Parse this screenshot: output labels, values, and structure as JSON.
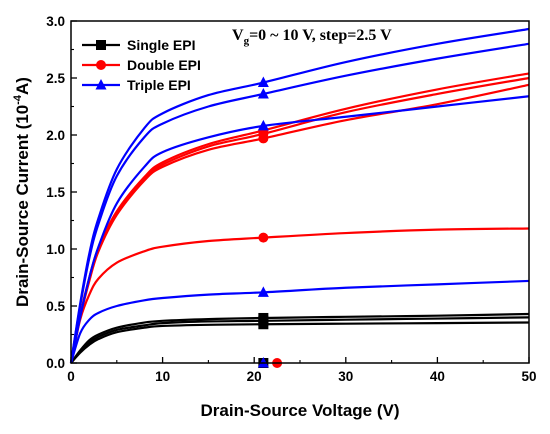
{
  "chart_data": {
    "type": "line",
    "xlabel": "Drain-Source Voltage (V)",
    "ylabel_main": "Drain-Source Current (10",
    "ylabel_exp": "-4",
    "ylabel_tail": "A)",
    "annotation_main": "V",
    "annotation_sub": "g",
    "annotation_tail": "=0 ~ 10 V, step=2.5 V",
    "xlim": [
      0,
      50
    ],
    "ylim": [
      0,
      3.0
    ],
    "xticks": [
      0,
      10,
      20,
      30,
      40,
      50
    ],
    "yticks": [
      0.0,
      0.5,
      1.0,
      1.5,
      2.0,
      2.5,
      3.0
    ],
    "legend_position": "top-left",
    "series": [
      {
        "name": "Single EPI",
        "color": "#000000",
        "marker": "square",
        "curves": [
          {
            "x": [
              0,
              1,
              2,
              3,
              5,
              8,
              10,
              15,
              21,
              30,
              40,
              50
            ],
            "y": [
              0,
              0.09,
              0.16,
              0.21,
              0.27,
              0.31,
              0.325,
              0.335,
              0.34,
              0.345,
              0.35,
              0.355
            ]
          },
          {
            "x": [
              0,
              1,
              2,
              3,
              5,
              8,
              10,
              15,
              21,
              30,
              40,
              50
            ],
            "y": [
              0,
              0.1,
              0.18,
              0.23,
              0.29,
              0.33,
              0.35,
              0.365,
              0.37,
              0.38,
              0.39,
              0.4
            ]
          },
          {
            "x": [
              0,
              1,
              2,
              3,
              5,
              8,
              10,
              15,
              21,
              30,
              40,
              50
            ],
            "y": [
              0,
              0.11,
              0.2,
              0.25,
              0.31,
              0.355,
              0.37,
              0.385,
              0.395,
              0.405,
              0.415,
              0.43
            ]
          }
        ],
        "points": [
          {
            "x": 21,
            "y": 0.0
          },
          {
            "x": 21,
            "y": 0.34
          },
          {
            "x": 21,
            "y": 0.37
          },
          {
            "x": 21,
            "y": 0.395
          }
        ]
      },
      {
        "name": "Double EPI",
        "color": "#ff0000",
        "marker": "circle",
        "curves": [
          {
            "x": [
              0,
              1,
              2,
              3,
              5,
              8,
              10,
              15,
              21,
              30,
              40,
              50
            ],
            "y": [
              0,
              0.38,
              0.6,
              0.74,
              0.88,
              0.98,
              1.02,
              1.07,
              1.1,
              1.14,
              1.17,
              1.18
            ]
          },
          {
            "x": [
              0,
              1,
              2,
              3,
              5,
              8,
              10,
              15,
              21,
              30,
              40,
              50
            ],
            "y": [
              0,
              0.4,
              0.72,
              0.98,
              1.3,
              1.6,
              1.72,
              1.87,
              1.97,
              2.13,
              2.27,
              2.44
            ]
          },
          {
            "x": [
              0,
              1,
              2,
              3,
              5,
              8,
              10,
              15,
              21,
              30,
              40,
              50
            ],
            "y": [
              0,
              0.41,
              0.73,
              0.99,
              1.31,
              1.61,
              1.74,
              1.9,
              2.01,
              2.2,
              2.36,
              2.5
            ]
          },
          {
            "x": [
              0,
              1,
              2,
              3,
              5,
              8,
              10,
              15,
              21,
              30,
              40,
              50
            ],
            "y": [
              0,
              0.42,
              0.75,
              1.01,
              1.33,
              1.63,
              1.76,
              1.92,
              2.04,
              2.23,
              2.4,
              2.54
            ]
          }
        ],
        "points": [
          {
            "x": 22.5,
            "y": 0.0
          },
          {
            "x": 21,
            "y": 1.1
          },
          {
            "x": 21,
            "y": 1.97
          },
          {
            "x": 21,
            "y": 2.01
          },
          {
            "x": 21,
            "y": 2.04
          }
        ]
      },
      {
        "name": "Triple EPI",
        "color": "#0000ff",
        "marker": "triangle",
        "curves": [
          {
            "x": [
              0,
              1,
              2,
              3,
              5,
              8,
              10,
              15,
              21,
              30,
              40,
              50
            ],
            "y": [
              0,
              0.26,
              0.38,
              0.44,
              0.5,
              0.55,
              0.57,
              0.6,
              0.62,
              0.66,
              0.69,
              0.72
            ]
          },
          {
            "x": [
              0,
              1,
              2,
              3,
              5,
              8,
              10,
              15,
              21,
              30,
              40,
              50
            ],
            "y": [
              0,
              0.4,
              0.75,
              1.02,
              1.4,
              1.72,
              1.85,
              1.98,
              2.08,
              2.16,
              2.25,
              2.34
            ]
          },
          {
            "x": [
              0,
              1,
              2,
              3,
              5,
              8,
              10,
              15,
              21,
              30,
              40,
              50
            ],
            "y": [
              0,
              0.5,
              0.92,
              1.22,
              1.64,
              1.98,
              2.1,
              2.25,
              2.36,
              2.52,
              2.67,
              2.8
            ]
          },
          {
            "x": [
              0,
              1,
              2,
              3,
              5,
              8,
              10,
              15,
              21,
              30,
              40,
              50
            ],
            "y": [
              0,
              0.52,
              0.96,
              1.27,
              1.7,
              2.06,
              2.19,
              2.35,
              2.46,
              2.64,
              2.8,
              2.93
            ]
          }
        ],
        "points": [
          {
            "x": 21,
            "y": 0.0
          },
          {
            "x": 21,
            "y": 0.62
          },
          {
            "x": 21,
            "y": 2.08
          },
          {
            "x": 21,
            "y": 2.36
          },
          {
            "x": 21,
            "y": 2.46
          }
        ]
      }
    ]
  }
}
